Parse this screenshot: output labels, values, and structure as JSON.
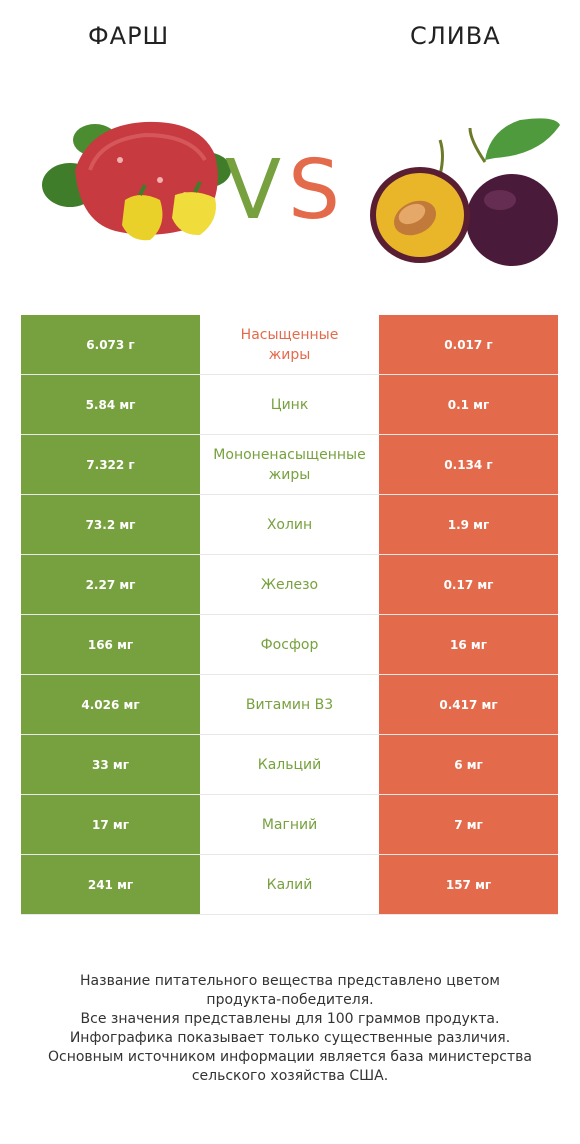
{
  "header": {
    "left_food": "ФАРШ",
    "right_food": "СЛИВА",
    "vs_text": "VS"
  },
  "colors": {
    "left_accent": "#77a13e",
    "right_accent": "#e36b4c"
  },
  "rows": [
    {
      "left": "6.073 г",
      "nutrient": "Насыщенные\nжиры",
      "right": "0.017 г",
      "winner": "right"
    },
    {
      "left": "5.84 мг",
      "nutrient": "Цинк",
      "right": "0.1 мг",
      "winner": "left"
    },
    {
      "left": "7.322 г",
      "nutrient": "Мононенасыщенные\nжиры",
      "right": "0.134 г",
      "winner": "left"
    },
    {
      "left": "73.2 мг",
      "nutrient": "Холин",
      "right": "1.9 мг",
      "winner": "left"
    },
    {
      "left": "2.27 мг",
      "nutrient": "Железо",
      "right": "0.17 мг",
      "winner": "left"
    },
    {
      "left": "166 мг",
      "nutrient": "Фосфор",
      "right": "16 мг",
      "winner": "left"
    },
    {
      "left": "4.026 мг",
      "nutrient": "Витамин B3",
      "right": "0.417 мг",
      "winner": "left"
    },
    {
      "left": "33 мг",
      "nutrient": "Кальций",
      "right": "6 мг",
      "winner": "left"
    },
    {
      "left": "17 мг",
      "nutrient": "Магний",
      "right": "7 мг",
      "winner": "left"
    },
    {
      "left": "241 мг",
      "nutrient": "Калий",
      "right": "157 мг",
      "winner": "left"
    }
  ],
  "footer": {
    "lines": [
      "Название питательного вещества представлено цветом",
      "продукта-победителя.",
      "Все значения представлены для 100 граммов продукта.",
      "Инфографика показывает только существенные различия.",
      "Основным источником информации является база министерства",
      "сельского хозяйства США."
    ]
  }
}
